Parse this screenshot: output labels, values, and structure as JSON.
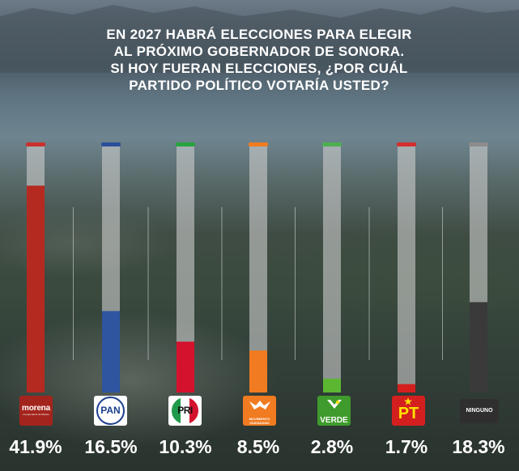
{
  "chart_data": {
    "type": "bar",
    "title": "EN 2027 HABRÁ ELECCIONES PARA ELEGIR AL PRÓXIMO GOBERNADOR DE SONORA. SI HOY FUERAN ELECCIONES, ¿POR CUÁL PARTIDO POLÍTICO VOTARÍA USTED?",
    "title_lines": [
      "EN 2027 HABRÁ ELECCIONES PARA ELEGIR",
      "AL PRÓXIMO GOBERNADOR DE SONORA.",
      "SI HOY FUERAN ELECCIONES, ¿POR CUÁL",
      "PARTIDO POLÍTICO VOTARÍA USTED?"
    ],
    "categories": [
      "morena",
      "PAN",
      "PRI",
      "MOVIMIENTO CIUDADANO",
      "VERDE",
      "PT",
      "NINGUNO"
    ],
    "values": [
      41.9,
      16.5,
      10.3,
      8.5,
      2.8,
      1.7,
      18.3
    ],
    "value_labels": [
      "41.9%",
      "16.5%",
      "10.3%",
      "8.5%",
      "2.8%",
      "1.7%",
      "18.3%"
    ],
    "ylim": [
      0,
      50
    ],
    "unit": "%",
    "colors": [
      "#b52a20",
      "#2f55a0",
      "#d4122e",
      "#f07b20",
      "#5cb632",
      "#d41f1f",
      "#3a3a3a"
    ],
    "cap_colors": [
      "#c9302c",
      "#2b4f9a",
      "#27a340",
      "#f07b20",
      "#4caf50",
      "#d32f2f",
      "#8c8c8c"
    ],
    "logos": {
      "morena": {
        "text": "morena",
        "subtext": "La esperanza de México",
        "icon": "morena-logo"
      },
      "pan": {
        "text": "PAN",
        "icon": "pan-logo"
      },
      "pri": {
        "text": "PRI",
        "icon": "pri-logo"
      },
      "mc": {
        "text": "MOVIMIENTO CIUDADANO",
        "icon": "mc-eagle-logo"
      },
      "verde": {
        "text": "VERDE",
        "icon": "verde-toucan-logo"
      },
      "pt": {
        "text": "PT",
        "icon": "pt-star-logo"
      },
      "ninguno": {
        "text": "NINGUNO",
        "icon": "ninguno-box"
      }
    },
    "grid": false
  }
}
